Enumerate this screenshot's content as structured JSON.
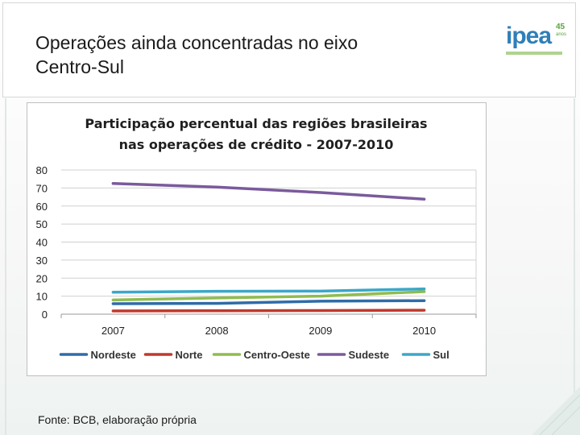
{
  "slide": {
    "title": "Operações ainda concentradas no eixo\nCentro-Sul",
    "source": "Fonte: BCB, elaboração própria",
    "logo": {
      "word": "ipea",
      "number": "45",
      "years": "anos"
    }
  },
  "colors": {
    "Nordeste": "#2e6ca8",
    "Norte": "#c0392b",
    "Centro-Oeste": "#8fbc4f",
    "Sudeste": "#7a5a9c",
    "Sul": "#3ba7c8"
  },
  "chart_data": {
    "type": "line",
    "title": "Participação percentual das regiões brasileiras\nnas operações de crédito - 2007-2010",
    "xlabel": "",
    "ylabel": "",
    "categories": [
      "2007",
      "2008",
      "2009",
      "2010"
    ],
    "ylim": [
      0,
      80
    ],
    "yticks": [
      0,
      10,
      20,
      30,
      40,
      50,
      60,
      70,
      80
    ],
    "grid": true,
    "legend_position": "bottom",
    "series": [
      {
        "name": "Nordeste",
        "values": [
          5.8,
          6.0,
          7.2,
          7.5
        ]
      },
      {
        "name": "Norte",
        "values": [
          1.8,
          1.9,
          2.0,
          2.2
        ]
      },
      {
        "name": "Centro-Oeste",
        "values": [
          7.9,
          9.0,
          10.0,
          12.5
        ]
      },
      {
        "name": "Sudeste",
        "values": [
          72.5,
          70.5,
          67.5,
          63.8
        ]
      },
      {
        "name": "Sul",
        "values": [
          12.2,
          12.7,
          12.8,
          14.0
        ]
      }
    ]
  }
}
